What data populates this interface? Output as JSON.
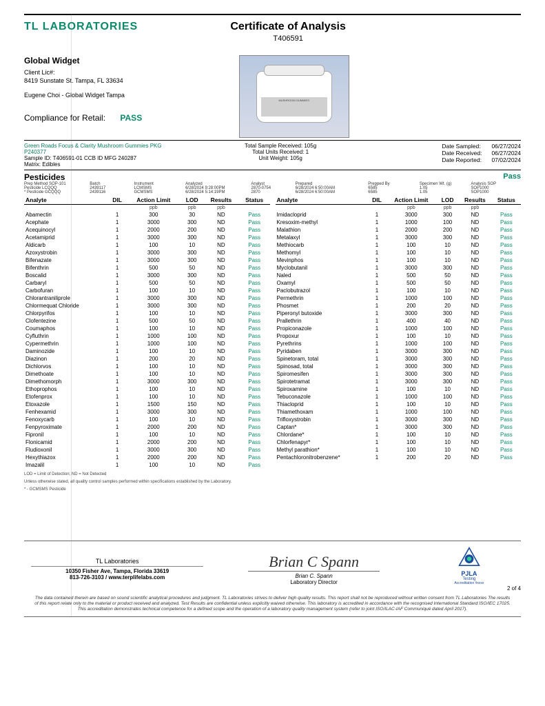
{
  "lab_name": "TL LABORATORIES",
  "title": "Certificate of Analysis",
  "cert_number": "T406591",
  "client": {
    "name": "Global Widget",
    "lic_label": "Client Lic#:",
    "address": "8419 Sunstate St. Tampa, FL 33634",
    "contact": "Eugene Choi - Global Widget Tampa"
  },
  "compliance": {
    "label": "Compliance for Retail:",
    "status": "PASS"
  },
  "product": {
    "name": "Green Roads Focus & Clarity Mushroom Gummies PKG",
    "pcode": "P240377",
    "sample_id": "Sample ID: T406591-01 CCB ID MFG 240287",
    "matrix": "Matrix: Edibles",
    "img_label": "MUSHROOM GUMMIES"
  },
  "receive": {
    "total_sample": "Total Sample Received: 105g",
    "total_units": "Total Units Received: 1",
    "unit_weight": "Unit Weight: 105g"
  },
  "dates": {
    "sampled_l": "Date Sampled:",
    "sampled_v": "06/27/2024",
    "received_l": "Date Received:",
    "received_v": "06/27/2024",
    "reported_l": "Date Reported:",
    "reported_v": "07/02/2024"
  },
  "section": {
    "title": "Pesticides",
    "status": "Pass"
  },
  "meta_headers": [
    "Prep Method SOP-101",
    "Batch",
    "Instrument",
    "Analyzed",
    "Analyst",
    "Prepared",
    "Prepped By",
    "Specimen Wt. (g)",
    "Analysis SOP"
  ],
  "meta_rows": [
    [
      "Pesticide LCQQQ",
      "2439117",
      "LCMSMS",
      "6/28/2024  9:28:00PM",
      "2870-0754",
      "6/28/2024  6:50:00AM",
      "6585",
      "1.05",
      "SOP1000"
    ],
    [
      "* Pesticide GCQQQ",
      "2439116",
      "GCMSMS",
      "6/28/2024  5:14:19PM",
      "2870",
      "6/28/2024  6:50:00AM",
      "6585",
      "1.05",
      "SOP1000"
    ]
  ],
  "columns": [
    "Analyte",
    "DIL",
    "Action Limit",
    "LOD",
    "Results",
    "Status"
  ],
  "units": [
    "",
    "",
    "ppb",
    "ppb",
    "ppb",
    ""
  ],
  "left_rows": [
    [
      "Abamectin",
      "1",
      "300",
      "30",
      "ND",
      "Pass"
    ],
    [
      "Acephate",
      "1",
      "3000",
      "300",
      "ND",
      "Pass"
    ],
    [
      "Acequinocyl",
      "1",
      "2000",
      "200",
      "ND",
      "Pass"
    ],
    [
      "Acetamiprid",
      "1",
      "3000",
      "300",
      "ND",
      "Pass"
    ],
    [
      "Aldicarb",
      "1",
      "100",
      "10",
      "ND",
      "Pass"
    ],
    [
      "Azoxystrobin",
      "1",
      "3000",
      "300",
      "ND",
      "Pass"
    ],
    [
      "Bifenazate",
      "1",
      "3000",
      "300",
      "ND",
      "Pass"
    ],
    [
      "Bifenthrin",
      "1",
      "500",
      "50",
      "ND",
      "Pass"
    ],
    [
      "Boscalid",
      "1",
      "3000",
      "300",
      "ND",
      "Pass"
    ],
    [
      "Carbaryl",
      "1",
      "500",
      "50",
      "ND",
      "Pass"
    ],
    [
      "Carbofuran",
      "1",
      "100",
      "10",
      "ND",
      "Pass"
    ],
    [
      "Chlorantraniliprole",
      "1",
      "3000",
      "300",
      "ND",
      "Pass"
    ],
    [
      "Chlormequat Chloride",
      "1",
      "3000",
      "300",
      "ND",
      "Pass"
    ],
    [
      "Chlorpyrifos",
      "1",
      "100",
      "10",
      "ND",
      "Pass"
    ],
    [
      "Clofentezine",
      "1",
      "500",
      "50",
      "ND",
      "Pass"
    ],
    [
      "Coumaphos",
      "1",
      "100",
      "10",
      "ND",
      "Pass"
    ],
    [
      "Cyfluthrin",
      "1",
      "1000",
      "100",
      "ND",
      "Pass"
    ],
    [
      "Cypermethrin",
      "1",
      "1000",
      "100",
      "ND",
      "Pass"
    ],
    [
      "Daminozide",
      "1",
      "100",
      "10",
      "ND",
      "Pass"
    ],
    [
      "Diazinon",
      "1",
      "200",
      "20",
      "ND",
      "Pass"
    ],
    [
      "Dichlorvos",
      "1",
      "100",
      "10",
      "ND",
      "Pass"
    ],
    [
      "Dimethoate",
      "1",
      "100",
      "10",
      "ND",
      "Pass"
    ],
    [
      "Dimethomorph",
      "1",
      "3000",
      "300",
      "ND",
      "Pass"
    ],
    [
      "Ethoprophos",
      "1",
      "100",
      "10",
      "ND",
      "Pass"
    ],
    [
      "Etofenprox",
      "1",
      "100",
      "10",
      "ND",
      "Pass"
    ],
    [
      "Etoxazole",
      "1",
      "1500",
      "150",
      "ND",
      "Pass"
    ],
    [
      "Fenhexamid",
      "1",
      "3000",
      "300",
      "ND",
      "Pass"
    ],
    [
      "Fenoxycarb",
      "1",
      "100",
      "10",
      "ND",
      "Pass"
    ],
    [
      "Fenpyroximate",
      "1",
      "2000",
      "200",
      "ND",
      "Pass"
    ],
    [
      "Fipronil",
      "1",
      "100",
      "10",
      "ND",
      "Pass"
    ],
    [
      "Flonicamid",
      "1",
      "2000",
      "200",
      "ND",
      "Pass"
    ],
    [
      "Fludioxonil",
      "1",
      "3000",
      "300",
      "ND",
      "Pass"
    ],
    [
      "Hexythiazox",
      "1",
      "2000",
      "200",
      "ND",
      "Pass"
    ],
    [
      "Imazalil",
      "1",
      "100",
      "10",
      "ND",
      "Pass"
    ]
  ],
  "right_rows": [
    [
      "Imidacloprid",
      "1",
      "3000",
      "300",
      "ND",
      "Pass"
    ],
    [
      "Kresoxim-methyl",
      "1",
      "1000",
      "100",
      "ND",
      "Pass"
    ],
    [
      "Malathion",
      "1",
      "2000",
      "200",
      "ND",
      "Pass"
    ],
    [
      "Metalaxyl",
      "1",
      "3000",
      "300",
      "ND",
      "Pass"
    ],
    [
      "Methiocarb",
      "1",
      "100",
      "10",
      "ND",
      "Pass"
    ],
    [
      "Methomyl",
      "1",
      "100",
      "10",
      "ND",
      "Pass"
    ],
    [
      "Mevinphos",
      "1",
      "100",
      "10",
      "ND",
      "Pass"
    ],
    [
      "Myclobutanil",
      "1",
      "3000",
      "300",
      "ND",
      "Pass"
    ],
    [
      "Naled",
      "1",
      "500",
      "50",
      "ND",
      "Pass"
    ],
    [
      "Oxamyl",
      "1",
      "500",
      "50",
      "ND",
      "Pass"
    ],
    [
      "Paclobutrazol",
      "1",
      "100",
      "10",
      "ND",
      "Pass"
    ],
    [
      "Permethrin",
      "1",
      "1000",
      "100",
      "ND",
      "Pass"
    ],
    [
      "Phosmet",
      "1",
      "200",
      "20",
      "ND",
      "Pass"
    ],
    [
      "Piperonyl butoxide",
      "1",
      "3000",
      "300",
      "ND",
      "Pass"
    ],
    [
      "Prallethrin",
      "1",
      "400",
      "40",
      "ND",
      "Pass"
    ],
    [
      "Propiconazole",
      "1",
      "1000",
      "100",
      "ND",
      "Pass"
    ],
    [
      "Propoxur",
      "1",
      "100",
      "10",
      "ND",
      "Pass"
    ],
    [
      "Pyrethrins",
      "1",
      "1000",
      "100",
      "ND",
      "Pass"
    ],
    [
      "Pyridaben",
      "1",
      "3000",
      "300",
      "ND",
      "Pass"
    ],
    [
      "Spinetoram, total",
      "1",
      "3000",
      "300",
      "ND",
      "Pass"
    ],
    [
      "Spinosad, total",
      "1",
      "3000",
      "300",
      "ND",
      "Pass"
    ],
    [
      "Spiromesifen",
      "1",
      "3000",
      "300",
      "ND",
      "Pass"
    ],
    [
      "Spirotetramat",
      "1",
      "3000",
      "300",
      "ND",
      "Pass"
    ],
    [
      "Spiroxamine",
      "1",
      "100",
      "10",
      "ND",
      "Pass"
    ],
    [
      "Tebuconazole",
      "1",
      "1000",
      "100",
      "ND",
      "Pass"
    ],
    [
      "Thiacloprid",
      "1",
      "100",
      "10",
      "ND",
      "Pass"
    ],
    [
      "Thiamethoxam",
      "1",
      "1000",
      "100",
      "ND",
      "Pass"
    ],
    [
      "Trifloxystrobin",
      "1",
      "3000",
      "300",
      "ND",
      "Pass"
    ],
    [
      "Captan*",
      "1",
      "3000",
      "300",
      "ND",
      "Pass"
    ],
    [
      "Chlordane*",
      "1",
      "100",
      "10",
      "ND",
      "Pass"
    ],
    [
      "Chlorfenapyr*",
      "1",
      "100",
      "10",
      "ND",
      "Pass"
    ],
    [
      "Methyl parathion*",
      "1",
      "100",
      "10",
      "ND",
      "Pass"
    ],
    [
      "Pentachloronitrobenzene*",
      "1",
      "200",
      "20",
      "ND",
      "Pass"
    ]
  ],
  "footnotes": [
    "LOD = Limit of Detection; ND = Not Detected",
    "Unless otherwise stated, all quality control samples performed within specifications established by the Laboratory.",
    "* - GCMSMS Pesticide"
  ],
  "footer": {
    "lab": "TL Laboratories",
    "addr": "10350 Fisher Ave, Tampa, Florida 33619",
    "phone_url": "813-726-3103 / www.terplifelabs.com",
    "sig_name": "Brian C. Spann",
    "sig_title": "Laboratory Director",
    "accred": "PJLA",
    "accred2": "Testing",
    "accred3": "Accreditation #xxxx",
    "page": "2 of 4",
    "disclaimer": "The data contained therein are based on sound scientific analytical procedures and judgment. TL Laboratories strives to deliver high quality results. This report shall not be reproduced without written consent from TL Laboratories The results of this report relate only to the material or product received and analyzed. Test Results are confidential unless explicitly waived otherwise. This laboratory is accredited in accordance with the recognised International Standard ISO/IEC 17025. This accreditation demonstrates technical competence for a defined scope and the operation of a laboratory quality management system (refer to joint ISO/ILAC-IAF Communiqué dated April 2017)."
  }
}
